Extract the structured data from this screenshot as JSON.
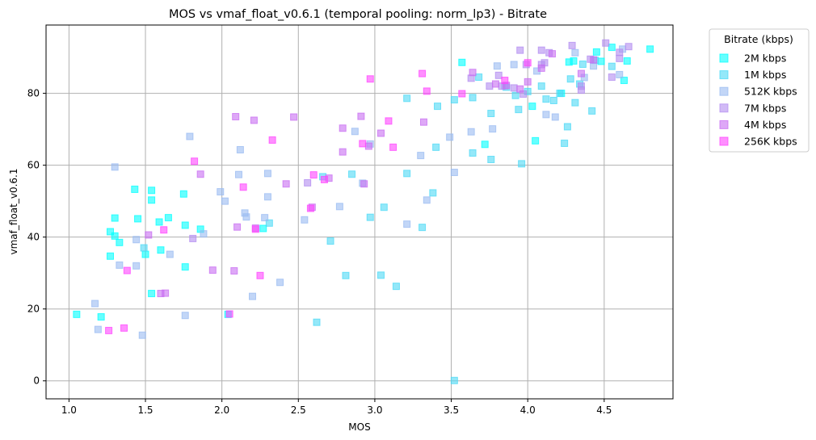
{
  "chart_data": {
    "type": "scatter",
    "title": "MOS vs vmaf_float_v0.6.1 (temporal pooling: norm_lp3) - Bitrate",
    "xlabel": "MOS",
    "ylabel": "vmaf_float_v0.6.1",
    "xlim": [
      0.85,
      4.95
    ],
    "ylim": [
      -5,
      99
    ],
    "xticks": [
      1.0,
      1.5,
      2.0,
      2.5,
      3.0,
      3.5,
      4.0,
      4.5
    ],
    "xtick_labels": [
      "1.0",
      "1.5",
      "2.0",
      "2.5",
      "3.0",
      "3.5",
      "4.0",
      "4.5"
    ],
    "yticks": [
      0,
      20,
      40,
      60,
      80
    ],
    "ytick_labels": [
      "0",
      "20",
      "40",
      "60",
      "80"
    ],
    "grid": true,
    "legend": {
      "title": "Bitrate (kbps)",
      "placement": "outside-right-top"
    },
    "series": [
      {
        "name": "2M kbps",
        "color": "#00ffff",
        "points": [
          [
            1.05,
            18.5
          ],
          [
            1.21,
            17.8
          ],
          [
            1.27,
            41.5
          ],
          [
            1.27,
            34.7
          ],
          [
            1.3,
            45.3
          ],
          [
            1.3,
            40.3
          ],
          [
            1.33,
            38.5
          ],
          [
            1.43,
            53.3
          ],
          [
            1.45,
            45.1
          ],
          [
            1.5,
            35.2
          ],
          [
            1.54,
            50.3
          ],
          [
            1.54,
            53.0
          ],
          [
            1.54,
            24.3
          ],
          [
            1.59,
            44.2
          ],
          [
            1.6,
            36.4
          ],
          [
            1.65,
            45.4
          ],
          [
            1.75,
            52.0
          ],
          [
            1.76,
            43.3
          ],
          [
            1.76,
            31.7
          ],
          [
            1.86,
            42.2
          ],
          [
            2.04,
            18.5
          ],
          [
            2.27,
            42.4
          ],
          [
            3.57,
            88.6
          ],
          [
            3.72,
            65.8
          ],
          [
            4.03,
            76.4
          ],
          [
            4.05,
            66.8
          ],
          [
            4.22,
            80.0
          ],
          [
            4.27,
            88.7
          ],
          [
            4.3,
            89.0
          ],
          [
            4.45,
            91.5
          ],
          [
            4.48,
            88.9
          ],
          [
            4.55,
            92.8
          ],
          [
            4.65,
            89.0
          ],
          [
            4.8,
            92.3
          ],
          [
            4.63,
            83.6
          ]
        ]
      },
      {
        "name": "1M kbps",
        "color": "#4cd9f5",
        "points": [
          [
            1.49,
            37.0
          ],
          [
            2.31,
            43.9
          ],
          [
            2.62,
            16.3
          ],
          [
            2.66,
            56.8
          ],
          [
            2.71,
            38.9
          ],
          [
            2.81,
            29.3
          ],
          [
            2.85,
            57.5
          ],
          [
            2.97,
            45.5
          ],
          [
            3.04,
            29.4
          ],
          [
            3.06,
            48.3
          ],
          [
            3.14,
            26.3
          ],
          [
            3.21,
            57.7
          ],
          [
            3.21,
            78.6
          ],
          [
            3.31,
            42.7
          ],
          [
            3.38,
            52.3
          ],
          [
            3.4,
            65.0
          ],
          [
            3.41,
            76.4
          ],
          [
            3.52,
            0.1
          ],
          [
            3.52,
            78.2
          ],
          [
            3.64,
            63.4
          ],
          [
            3.64,
            78.8
          ],
          [
            3.68,
            84.5
          ],
          [
            3.76,
            61.6
          ],
          [
            3.76,
            74.4
          ],
          [
            3.86,
            81.7
          ],
          [
            3.92,
            79.4
          ],
          [
            3.94,
            75.5
          ],
          [
            3.96,
            60.4
          ],
          [
            4.0,
            80.5
          ],
          [
            4.09,
            82.0
          ],
          [
            4.12,
            78.4
          ],
          [
            4.17,
            78.0
          ],
          [
            4.21,
            80.0
          ],
          [
            4.24,
            66.1
          ],
          [
            4.26,
            70.7
          ],
          [
            4.28,
            84.0
          ],
          [
            4.31,
            77.4
          ],
          [
            4.34,
            82.6
          ],
          [
            4.36,
            88.1
          ],
          [
            4.42,
            75.1
          ],
          [
            4.44,
            89.2
          ],
          [
            4.55,
            87.5
          ]
        ]
      },
      {
        "name": "512K kbps",
        "color": "#99bbf2",
        "points": [
          [
            1.17,
            21.5
          ],
          [
            1.19,
            14.3
          ],
          [
            1.3,
            59.5
          ],
          [
            1.33,
            32.2
          ],
          [
            1.44,
            32.0
          ],
          [
            1.44,
            39.3
          ],
          [
            1.48,
            12.7
          ],
          [
            1.66,
            35.2
          ],
          [
            1.76,
            18.2
          ],
          [
            1.79,
            68.0
          ],
          [
            1.88,
            40.9
          ],
          [
            1.99,
            52.6
          ],
          [
            2.02,
            50.0
          ],
          [
            2.11,
            57.4
          ],
          [
            2.12,
            64.3
          ],
          [
            2.15,
            46.7
          ],
          [
            2.16,
            45.6
          ],
          [
            2.2,
            23.5
          ],
          [
            2.28,
            45.4
          ],
          [
            2.3,
            51.2
          ],
          [
            2.3,
            57.7
          ],
          [
            2.38,
            27.4
          ],
          [
            2.54,
            44.8
          ],
          [
            2.77,
            48.5
          ],
          [
            2.87,
            69.4
          ],
          [
            2.92,
            55.0
          ],
          [
            2.97,
            65.9
          ],
          [
            3.21,
            43.6
          ],
          [
            3.3,
            62.7
          ],
          [
            3.34,
            50.3
          ],
          [
            3.49,
            67.8
          ],
          [
            3.52,
            58.0
          ],
          [
            3.63,
            69.3
          ],
          [
            3.77,
            70.1
          ],
          [
            3.8,
            87.6
          ],
          [
            3.85,
            82.0
          ],
          [
            3.91,
            88.0
          ],
          [
            4.06,
            86.2
          ],
          [
            4.12,
            74.1
          ],
          [
            4.18,
            73.4
          ],
          [
            4.31,
            91.3
          ],
          [
            4.37,
            84.4
          ],
          [
            4.43,
            87.6
          ],
          [
            4.6,
            85.2
          ],
          [
            4.62,
            92.3
          ]
        ]
      },
      {
        "name": "7M kbps",
        "color": "#b38cf0",
        "points": [
          [
            1.81,
            39.6
          ],
          [
            2.56,
            55.1
          ],
          [
            3.63,
            84.2
          ],
          [
            3.75,
            82.0
          ],
          [
            3.81,
            85.0
          ],
          [
            3.83,
            82.0
          ],
          [
            3.91,
            81.5
          ],
          [
            3.95,
            92.0
          ],
          [
            3.97,
            79.8
          ],
          [
            3.99,
            88.0
          ],
          [
            4.09,
            88.0
          ],
          [
            4.09,
            92.0
          ],
          [
            4.11,
            88.5
          ],
          [
            4.14,
            91.3
          ],
          [
            4.29,
            93.3
          ],
          [
            4.35,
            80.9
          ],
          [
            4.35,
            82.0
          ],
          [
            4.41,
            89.5
          ],
          [
            4.51,
            94.0
          ],
          [
            4.55,
            84.5
          ],
          [
            4.6,
            91.4
          ],
          [
            4.6,
            89.7
          ],
          [
            4.66,
            93.0
          ]
        ]
      },
      {
        "name": "4M kbps",
        "color": "#c86ef2",
        "points": [
          [
            1.52,
            40.6
          ],
          [
            1.6,
            24.3
          ],
          [
            1.63,
            24.4
          ],
          [
            1.86,
            57.5
          ],
          [
            1.94,
            30.8
          ],
          [
            2.08,
            30.6
          ],
          [
            2.09,
            73.5
          ],
          [
            2.1,
            42.8
          ],
          [
            2.21,
            72.5
          ],
          [
            2.22,
            42.5
          ],
          [
            2.42,
            54.8
          ],
          [
            2.47,
            73.4
          ],
          [
            2.59,
            48.3
          ],
          [
            2.7,
            56.4
          ],
          [
            2.79,
            70.3
          ],
          [
            2.79,
            63.7
          ],
          [
            2.91,
            73.6
          ],
          [
            2.93,
            54.8
          ],
          [
            2.96,
            65.3
          ],
          [
            3.04,
            68.9
          ],
          [
            3.32,
            72.0
          ],
          [
            3.64,
            85.8
          ],
          [
            3.79,
            82.6
          ],
          [
            3.86,
            82.2
          ],
          [
            3.95,
            81.2
          ],
          [
            4.0,
            83.2
          ],
          [
            4.09,
            87.0
          ],
          [
            4.16,
            91.0
          ],
          [
            4.35,
            85.5
          ],
          [
            4.43,
            89.3
          ]
        ]
      },
      {
        "name": "256K kbps",
        "color": "#ff44ff",
        "points": [
          [
            1.26,
            14.0
          ],
          [
            1.36,
            14.7
          ],
          [
            1.38,
            30.7
          ],
          [
            1.62,
            42.0
          ],
          [
            1.82,
            61.1
          ],
          [
            2.05,
            18.6
          ],
          [
            2.14,
            53.9
          ],
          [
            2.22,
            42.2
          ],
          [
            2.25,
            29.3
          ],
          [
            2.33,
            67.0
          ],
          [
            2.58,
            48.0
          ],
          [
            2.6,
            57.3
          ],
          [
            2.67,
            56.0
          ],
          [
            2.92,
            66.0
          ],
          [
            2.97,
            84.0
          ],
          [
            3.09,
            72.3
          ],
          [
            3.12,
            65.0
          ],
          [
            3.31,
            85.5
          ],
          [
            3.34,
            80.6
          ],
          [
            3.57,
            79.9
          ],
          [
            3.85,
            83.6
          ],
          [
            4.0,
            88.5
          ]
        ]
      }
    ]
  }
}
